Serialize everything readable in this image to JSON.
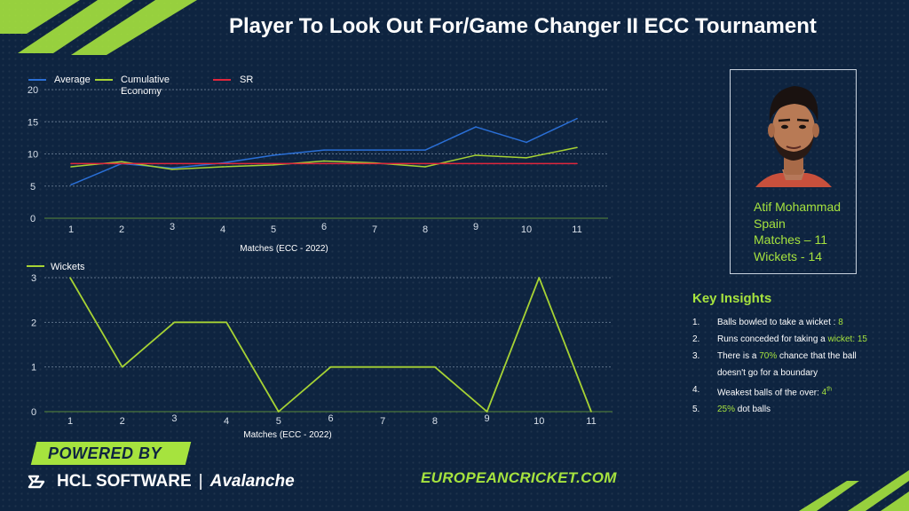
{
  "title": "Player To Look Out For/Game Changer II ECC Tournament",
  "colors": {
    "background": "#0e2440",
    "accent": "#a6e33e",
    "average": "#2a6fd6",
    "economy": "#a6d234",
    "sr": "#e0263c"
  },
  "chart_data": [
    {
      "type": "line",
      "x": [
        1,
        2,
        3,
        4,
        5,
        6,
        7,
        8,
        9,
        10,
        11
      ],
      "series": [
        {
          "name": "Average",
          "values": [
            5.2,
            8.5,
            7.8,
            8.6,
            9.8,
            10.6,
            10.6,
            10.6,
            14.2,
            11.8,
            15.5
          ]
        },
        {
          "name": "Cumulative Economy",
          "values": [
            8.0,
            8.8,
            7.6,
            8.0,
            8.3,
            8.9,
            8.6,
            8.0,
            9.8,
            9.4,
            11.0
          ]
        },
        {
          "name": "SR",
          "values": [
            8.5,
            8.5,
            8.5,
            8.5,
            8.5,
            8.5,
            8.5,
            8.5,
            8.5,
            8.5,
            8.5
          ]
        }
      ],
      "xlabel": "Matches (ECC - 2022)",
      "ylabel": "",
      "ylim": [
        0,
        20
      ],
      "yticks": [
        0,
        5,
        10,
        15,
        20
      ],
      "grid": true,
      "legend": "top-left"
    },
    {
      "type": "line",
      "x": [
        1,
        2,
        3,
        4,
        5,
        6,
        7,
        8,
        9,
        10,
        11
      ],
      "series": [
        {
          "name": "Wickets",
          "values": [
            3,
            1,
            2,
            2,
            0,
            1,
            1,
            1,
            0,
            3,
            0
          ]
        }
      ],
      "xlabel": "Matches (ECC - 2022)",
      "ylabel": "",
      "ylim": [
        0,
        3
      ],
      "yticks": [
        0,
        1,
        2,
        3
      ],
      "grid": true,
      "legend": "top-left"
    }
  ],
  "player": {
    "name": "Atif Mohammad",
    "country": "Spain",
    "matches": "Matches – 11",
    "wickets": "Wickets - 14"
  },
  "insights": {
    "title": "Key Insights",
    "items": [
      {
        "num": "1.",
        "text": "Balls bowled to take a wicket : ",
        "hl": "8",
        "after": ""
      },
      {
        "num": "2.",
        "text": "Runs conceded for taking a ",
        "hl": "wicket: 15",
        "after": ""
      },
      {
        "num": "3.",
        "text": "There is a ",
        "hl": "70%",
        "after": " chance that the ball"
      },
      {
        "num": "",
        "text": "doesn't go for a boundary",
        "hl": "",
        "after": ""
      },
      {
        "num": "4.",
        "text": "Weakest balls of the over: ",
        "hl": "4",
        "sup": "th",
        "after": ""
      },
      {
        "num": "5.",
        "text": "",
        "hl": "25%",
        "after": " dot balls"
      }
    ]
  },
  "footer": {
    "powered_by": "POWERED BY",
    "company": "HCL SOFTWARE",
    "separator": "|",
    "product": "Avalanche",
    "website": "EUROPEANCRICKET.COM"
  }
}
